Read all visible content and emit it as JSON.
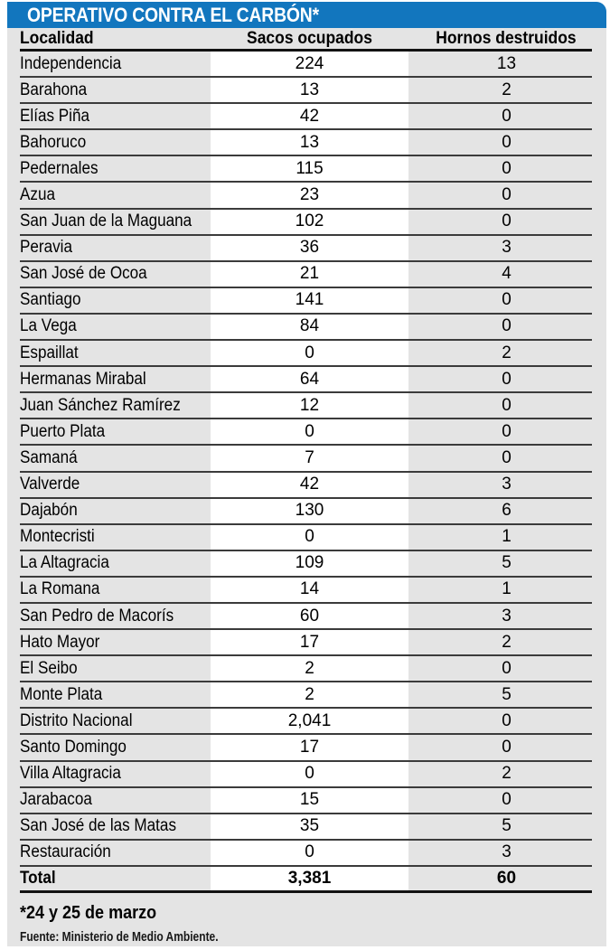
{
  "title": "OPERATIVO CONTRA EL CARBÓN*",
  "table": {
    "columns": [
      "Localidad",
      "Sacos ocupados",
      "Hornos destruidos"
    ],
    "rows": [
      [
        "Independencia",
        "224",
        "13"
      ],
      [
        "Barahona",
        "13",
        "2"
      ],
      [
        "Elías Piña",
        "42",
        "0"
      ],
      [
        "Bahoruco",
        "13",
        "0"
      ],
      [
        "Pedernales",
        "115",
        "0"
      ],
      [
        "Azua",
        "23",
        "0"
      ],
      [
        "San Juan de la Maguana",
        "102",
        "0"
      ],
      [
        "Peravia",
        "36",
        "3"
      ],
      [
        "San José de Ocoa",
        "21",
        "4"
      ],
      [
        "Santiago",
        "141",
        "0"
      ],
      [
        "La Vega",
        "84",
        "0"
      ],
      [
        "Espaillat",
        "0",
        "2"
      ],
      [
        "Hermanas Mirabal",
        "64",
        "0"
      ],
      [
        "Juan Sánchez Ramírez",
        "12",
        "0"
      ],
      [
        "Puerto Plata",
        "0",
        "0"
      ],
      [
        "Samaná",
        "7",
        "0"
      ],
      [
        "Valverde",
        "42",
        "3"
      ],
      [
        "Dajabón",
        "130",
        "6"
      ],
      [
        "Montecristi",
        "0",
        "1"
      ],
      [
        "La Altagracia",
        "109",
        "5"
      ],
      [
        "La Romana",
        "14",
        "1"
      ],
      [
        "San Pedro de Macorís",
        "60",
        "3"
      ],
      [
        "Hato Mayor",
        "17",
        "2"
      ],
      [
        "El Seibo",
        "2",
        "0"
      ],
      [
        "Monte Plata",
        "2",
        "5"
      ],
      [
        "Distrito Nacional",
        "2,041",
        "0"
      ],
      [
        "Santo Domingo",
        "17",
        "0"
      ],
      [
        "Villa Altagracia",
        "0",
        "2"
      ],
      [
        "Jarabacoa",
        "15",
        "0"
      ],
      [
        "San José de las Matas",
        "35",
        "5"
      ],
      [
        "Restauración",
        "0",
        "3"
      ]
    ],
    "total": [
      "Total",
      "3,381",
      "60"
    ]
  },
  "footnote": "*24 y 25 de marzo",
  "source": "Fuente: Ministerio de Medio Ambiente.",
  "colors": {
    "accent_blue": "#1276BE",
    "panel_gray": "#E4E4E4",
    "column_band_white": "#FFFFFF",
    "row_line": "#3B3B3B",
    "heavy_line": "#121212"
  },
  "chart_data": {
    "type": "table",
    "title": "OPERATIVO CONTRA EL CARBÓN*",
    "columns": [
      "Localidad",
      "Sacos ocupados",
      "Hornos destruidos"
    ],
    "rows": [
      [
        "Independencia",
        224,
        13
      ],
      [
        "Barahona",
        13,
        2
      ],
      [
        "Elías Piña",
        42,
        0
      ],
      [
        "Bahoruco",
        13,
        0
      ],
      [
        "Pedernales",
        115,
        0
      ],
      [
        "Azua",
        23,
        0
      ],
      [
        "San Juan de la Maguana",
        102,
        0
      ],
      [
        "Peravia",
        36,
        3
      ],
      [
        "San José de Ocoa",
        21,
        4
      ],
      [
        "Santiago",
        141,
        0
      ],
      [
        "La Vega",
        84,
        0
      ],
      [
        "Espaillat",
        0,
        2
      ],
      [
        "Hermanas Mirabal",
        64,
        0
      ],
      [
        "Juan Sánchez Ramírez",
        12,
        0
      ],
      [
        "Puerto Plata",
        0,
        0
      ],
      [
        "Samaná",
        7,
        0
      ],
      [
        "Valverde",
        42,
        3
      ],
      [
        "Dajabón",
        130,
        6
      ],
      [
        "Montecristi",
        0,
        1
      ],
      [
        "La Altagracia",
        109,
        5
      ],
      [
        "La Romana",
        14,
        1
      ],
      [
        "San Pedro de Macorís",
        60,
        3
      ],
      [
        "Hato Mayor",
        17,
        2
      ],
      [
        "El Seibo",
        2,
        0
      ],
      [
        "Monte Plata",
        2,
        5
      ],
      [
        "Distrito Nacional",
        2041,
        0
      ],
      [
        "Santo Domingo",
        17,
        0
      ],
      [
        "Villa Altagracia",
        0,
        2
      ],
      [
        "Jarabacoa",
        15,
        0
      ],
      [
        "San José de las Matas",
        35,
        5
      ],
      [
        "Restauración",
        0,
        3
      ]
    ],
    "total": {
      "Localidad": "Total",
      "Sacos ocupados": 3381,
      "Hornos destruidos": 60
    },
    "footnote": "*24 y 25 de marzo",
    "source": "Fuente: Ministerio de Medio Ambiente."
  }
}
